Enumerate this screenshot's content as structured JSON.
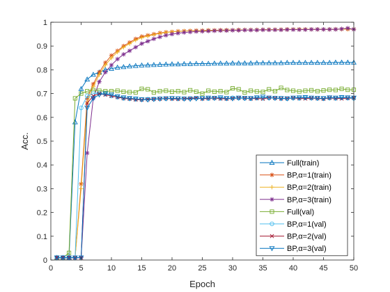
{
  "chart_data": {
    "type": "line",
    "title": "",
    "xlabel": "Epoch",
    "ylabel": "Acc.",
    "xlim": [
      0,
      50
    ],
    "ylim": [
      0,
      1
    ],
    "x_ticks": [
      0,
      5,
      10,
      15,
      20,
      25,
      30,
      35,
      40,
      45,
      50
    ],
    "y_ticks": [
      0,
      0.1,
      0.2,
      0.3,
      0.4,
      0.5,
      0.6,
      0.7,
      0.8,
      0.9,
      1
    ],
    "grid": false,
    "legend_position": "lower-right",
    "x": [
      1,
      2,
      3,
      4,
      5,
      6,
      7,
      8,
      9,
      10,
      11,
      12,
      13,
      14,
      15,
      16,
      17,
      18,
      19,
      20,
      21,
      22,
      23,
      24,
      25,
      26,
      27,
      28,
      29,
      30,
      31,
      32,
      33,
      34,
      35,
      36,
      37,
      38,
      39,
      40,
      41,
      42,
      43,
      44,
      45,
      46,
      47,
      48,
      49,
      50
    ],
    "series": [
      {
        "name": "Full(train)",
        "color": "#0072BD",
        "marker": "triangle",
        "values": [
          0.01,
          0.01,
          0.01,
          0.58,
          0.72,
          0.76,
          0.78,
          0.79,
          0.8,
          0.805,
          0.81,
          0.812,
          0.815,
          0.817,
          0.819,
          0.82,
          0.821,
          0.822,
          0.823,
          0.824,
          0.824,
          0.825,
          0.825,
          0.826,
          0.826,
          0.826,
          0.827,
          0.827,
          0.827,
          0.828,
          0.828,
          0.828,
          0.828,
          0.829,
          0.829,
          0.829,
          0.829,
          0.829,
          0.83,
          0.83,
          0.83,
          0.83,
          0.83,
          0.83,
          0.83,
          0.83,
          0.831,
          0.831,
          0.831,
          0.831
        ]
      },
      {
        "name": "BP,α=1(train)",
        "color": "#D95319",
        "marker": "star",
        "values": [
          0.01,
          0.01,
          0.01,
          0.01,
          0.32,
          0.68,
          0.74,
          0.79,
          0.83,
          0.86,
          0.88,
          0.9,
          0.915,
          0.93,
          0.94,
          0.945,
          0.95,
          0.955,
          0.958,
          0.96,
          0.962,
          0.963,
          0.964,
          0.965,
          0.965,
          0.966,
          0.966,
          0.967,
          0.967,
          0.967,
          0.968,
          0.968,
          0.968,
          0.968,
          0.969,
          0.969,
          0.969,
          0.969,
          0.97,
          0.97,
          0.97,
          0.97,
          0.97,
          0.97,
          0.97,
          0.97,
          0.971,
          0.971,
          0.971,
          0.971
        ]
      },
      {
        "name": "BP,α=2(train)",
        "color": "#EDB120",
        "marker": "plus",
        "values": [
          0.01,
          0.01,
          0.01,
          0.01,
          0.3,
          0.66,
          0.73,
          0.78,
          0.82,
          0.85,
          0.875,
          0.895,
          0.91,
          0.925,
          0.935,
          0.942,
          0.948,
          0.953,
          0.957,
          0.96,
          0.961,
          0.963,
          0.964,
          0.964,
          0.965,
          0.966,
          0.966,
          0.966,
          0.967,
          0.967,
          0.967,
          0.968,
          0.968,
          0.968,
          0.968,
          0.969,
          0.969,
          0.969,
          0.969,
          0.97,
          0.97,
          0.97,
          0.97,
          0.97,
          0.97,
          0.97,
          0.97,
          0.971,
          0.971,
          0.971
        ]
      },
      {
        "name": "BP,α=3(train)",
        "color": "#7E2F8E",
        "marker": "star",
        "values": [
          0.01,
          0.01,
          0.01,
          0.01,
          0.01,
          0.45,
          0.68,
          0.75,
          0.79,
          0.82,
          0.845,
          0.865,
          0.88,
          0.895,
          0.91,
          0.92,
          0.93,
          0.938,
          0.945,
          0.95,
          0.954,
          0.957,
          0.959,
          0.961,
          0.962,
          0.963,
          0.964,
          0.965,
          0.965,
          0.966,
          0.966,
          0.967,
          0.967,
          0.967,
          0.968,
          0.968,
          0.968,
          0.968,
          0.969,
          0.969,
          0.969,
          0.969,
          0.97,
          0.97,
          0.97,
          0.97,
          0.97,
          0.972,
          0.975,
          0.97
        ]
      },
      {
        "name": "Full(val)",
        "color": "#77AC30",
        "marker": "square",
        "values": [
          0.01,
          0.01,
          0.03,
          0.68,
          0.7,
          0.71,
          0.715,
          0.712,
          0.71,
          0.71,
          0.712,
          0.708,
          0.706,
          0.705,
          0.72,
          0.718,
          0.705,
          0.71,
          0.712,
          0.708,
          0.71,
          0.706,
          0.714,
          0.708,
          0.7,
          0.712,
          0.708,
          0.71,
          0.706,
          0.722,
          0.718,
          0.705,
          0.712,
          0.709,
          0.707,
          0.718,
          0.71,
          0.724,
          0.715,
          0.712,
          0.709,
          0.712,
          0.714,
          0.71,
          0.713,
          0.716,
          0.715,
          0.72,
          0.716,
          0.716
        ]
      },
      {
        "name": "BP,α=1(val)",
        "color": "#4DBEEE",
        "marker": "circle",
        "values": [
          0.01,
          0.01,
          0.01,
          0.01,
          0.64,
          0.69,
          0.7,
          0.702,
          0.698,
          0.69,
          0.685,
          0.68,
          0.678,
          0.676,
          0.675,
          0.676,
          0.677,
          0.678,
          0.679,
          0.68,
          0.679,
          0.678,
          0.68,
          0.681,
          0.68,
          0.679,
          0.681,
          0.68,
          0.679,
          0.682,
          0.681,
          0.68,
          0.679,
          0.681,
          0.68,
          0.682,
          0.681,
          0.68,
          0.679,
          0.681,
          0.68,
          0.682,
          0.681,
          0.68,
          0.679,
          0.681,
          0.68,
          0.682,
          0.681,
          0.68
        ]
      },
      {
        "name": "BP,α=2(val)",
        "color": "#A2142F",
        "marker": "x",
        "values": [
          0.01,
          0.01,
          0.01,
          0.01,
          0.01,
          0.66,
          0.69,
          0.7,
          0.695,
          0.69,
          0.685,
          0.68,
          0.678,
          0.675,
          0.674,
          0.676,
          0.677,
          0.678,
          0.68,
          0.678,
          0.677,
          0.679,
          0.68,
          0.682,
          0.678,
          0.68,
          0.681,
          0.679,
          0.678,
          0.68,
          0.682,
          0.681,
          0.679,
          0.68,
          0.678,
          0.683,
          0.681,
          0.679,
          0.68,
          0.682,
          0.68,
          0.679,
          0.681,
          0.68,
          0.678,
          0.682,
          0.68,
          0.679,
          0.681,
          0.682
        ]
      },
      {
        "name": "BP,α=3(val)",
        "color": "#0072BD",
        "marker": "triangle-down",
        "values": [
          0.01,
          0.01,
          0.01,
          0.01,
          0.01,
          0.64,
          0.68,
          0.695,
          0.7,
          0.695,
          0.688,
          0.683,
          0.68,
          0.678,
          0.675,
          0.674,
          0.676,
          0.678,
          0.679,
          0.68,
          0.679,
          0.678,
          0.677,
          0.679,
          0.68,
          0.682,
          0.681,
          0.683,
          0.68,
          0.679,
          0.682,
          0.681,
          0.68,
          0.683,
          0.686,
          0.682,
          0.681,
          0.68,
          0.679,
          0.682,
          0.683,
          0.684,
          0.682,
          0.681,
          0.68,
          0.683,
          0.682,
          0.684,
          0.683,
          0.682
        ]
      }
    ]
  }
}
